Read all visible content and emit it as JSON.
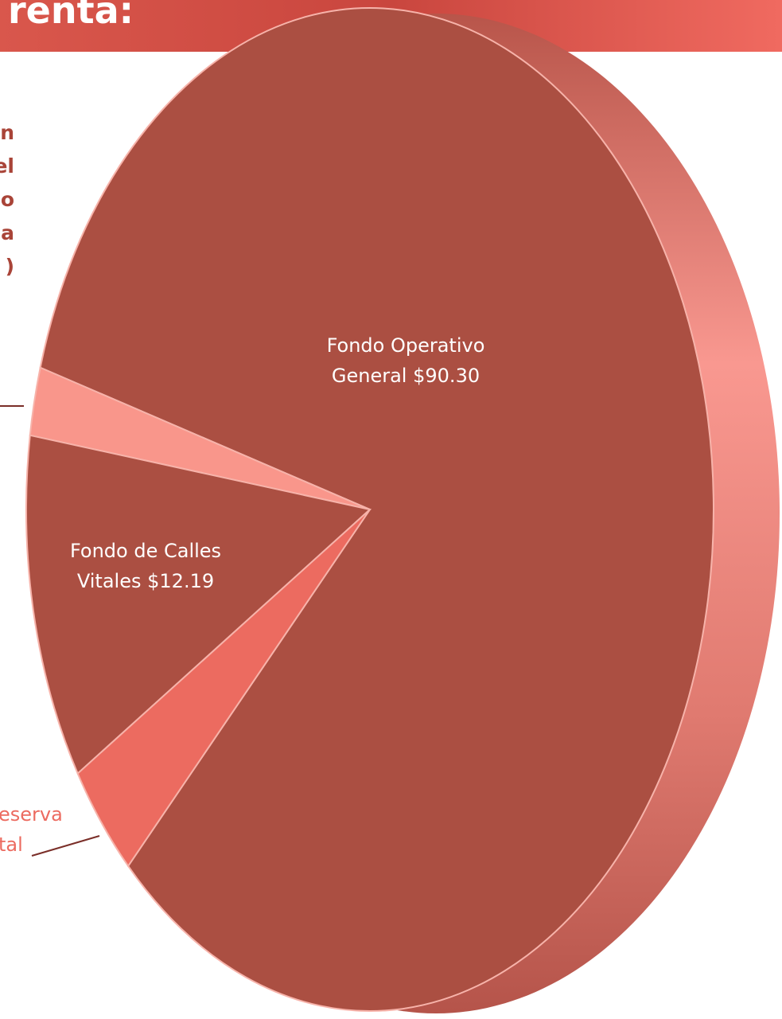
{
  "slide": {
    "title": "renta:",
    "text_lines": [
      "n",
      "el",
      "o",
      "a",
      ")"
    ]
  },
  "chart_data": {
    "type": "pie",
    "categories": [
      "Fondo Operativo General",
      null,
      "Fondo de Calles Vitales",
      "eserva tal"
    ],
    "values": [
      90.3,
      2.4,
      12.19,
      4.1
    ],
    "value_labels": [
      "$90.30",
      null,
      "$12.19",
      null
    ],
    "colors": [
      "#ab4f42",
      "#f9968b",
      "#ab4f42",
      "#ec6b60"
    ]
  }
}
